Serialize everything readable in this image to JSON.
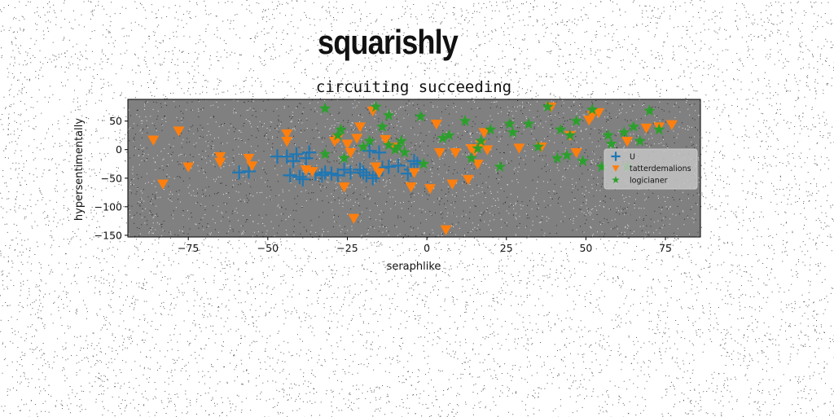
{
  "suptitle": "squarishly",
  "chart_data": {
    "type": "scatter",
    "title": "circuiting succeeding",
    "xlabel": "seraphlike",
    "ylabel": "hypersentimentally",
    "xlim": [
      -94,
      86
    ],
    "ylim": [
      -153,
      88
    ],
    "xticks": [
      -75,
      -50,
      -25,
      0,
      25,
      50,
      75
    ],
    "yticks": [
      -150,
      -100,
      -50,
      0,
      50
    ],
    "grid": false,
    "legend_position": "center-right",
    "background_color": "#808080",
    "series": [
      {
        "name": "U",
        "marker": "plus",
        "color": "#1f77b4",
        "points": [
          [
            -59,
            -40
          ],
          [
            -56,
            -38
          ],
          [
            -47,
            -12
          ],
          [
            -44,
            -12
          ],
          [
            -43,
            -45
          ],
          [
            -42,
            -20
          ],
          [
            -41,
            -8
          ],
          [
            -40,
            -48
          ],
          [
            -39,
            -52
          ],
          [
            -38,
            -15
          ],
          [
            -37,
            -5
          ],
          [
            -35,
            -42
          ],
          [
            -33,
            -45
          ],
          [
            -32,
            -40
          ],
          [
            -30,
            -42
          ],
          [
            -28,
            -45
          ],
          [
            -26,
            -35
          ],
          [
            -24,
            -40
          ],
          [
            -21,
            -35
          ],
          [
            -20,
            -40
          ],
          [
            -19,
            -45
          ],
          [
            -18,
            -2
          ],
          [
            -17,
            -50
          ],
          [
            -16,
            -45
          ],
          [
            -15,
            -5
          ],
          [
            -14,
            -32
          ],
          [
            -12,
            -30
          ],
          [
            -9,
            -28
          ],
          [
            -6,
            -42
          ],
          [
            -5,
            -35
          ],
          [
            -3,
            -25
          ],
          [
            -4,
            -20
          ]
        ]
      },
      {
        "name": "tatterdemalions",
        "marker": "triangle-down",
        "color": "#ff7f0e",
        "points": [
          [
            -86,
            17
          ],
          [
            -83,
            -60
          ],
          [
            -78,
            33
          ],
          [
            -75,
            -30
          ],
          [
            -65,
            -12
          ],
          [
            -65,
            -22
          ],
          [
            -56,
            -15
          ],
          [
            -55,
            -28
          ],
          [
            -44,
            28
          ],
          [
            -44,
            15
          ],
          [
            -38,
            -35
          ],
          [
            -36,
            -38
          ],
          [
            -29,
            15
          ],
          [
            -28,
            20
          ],
          [
            -26,
            -65
          ],
          [
            -25,
            10
          ],
          [
            -24,
            -5
          ],
          [
            -23,
            -120
          ],
          [
            -22,
            20
          ],
          [
            -21,
            40
          ],
          [
            -17,
            68
          ],
          [
            -16,
            -30
          ],
          [
            -15,
            -40
          ],
          [
            -13,
            18
          ],
          [
            -10,
            5
          ],
          [
            -5,
            -65
          ],
          [
            -4,
            -40
          ],
          [
            1,
            -68
          ],
          [
            3,
            45
          ],
          [
            4,
            -5
          ],
          [
            6,
            -140
          ],
          [
            8,
            -60
          ],
          [
            9,
            -5
          ],
          [
            13,
            -52
          ],
          [
            14,
            2
          ],
          [
            15,
            -2
          ],
          [
            16,
            -25
          ],
          [
            17,
            10
          ],
          [
            18,
            30
          ],
          [
            19,
            0
          ],
          [
            29,
            3
          ],
          [
            36,
            5
          ],
          [
            39,
            75
          ],
          [
            45,
            25
          ],
          [
            47,
            -5
          ],
          [
            51,
            52
          ],
          [
            52,
            60
          ],
          [
            54,
            65
          ],
          [
            63,
            15
          ],
          [
            69,
            38
          ],
          [
            73,
            40
          ],
          [
            77,
            44
          ]
        ]
      },
      {
        "name": "logicianer",
        "marker": "star",
        "color": "#2ca02c",
        "points": [
          [
            -32,
            72
          ],
          [
            -32,
            -8
          ],
          [
            -28,
            25
          ],
          [
            -27,
            35
          ],
          [
            -26,
            -15
          ],
          [
            -20,
            5
          ],
          [
            -18,
            15
          ],
          [
            -16,
            75
          ],
          [
            -14,
            40
          ],
          [
            -12,
            60
          ],
          [
            -12,
            8
          ],
          [
            -10,
            0
          ],
          [
            -9,
            5
          ],
          [
            -8,
            15
          ],
          [
            -7,
            -5
          ],
          [
            -2,
            58
          ],
          [
            -1,
            -25
          ],
          [
            5,
            20
          ],
          [
            7,
            25
          ],
          [
            12,
            50
          ],
          [
            14,
            -15
          ],
          [
            16,
            2
          ],
          [
            17,
            15
          ],
          [
            20,
            35
          ],
          [
            23,
            -30
          ],
          [
            26,
            45
          ],
          [
            27,
            30
          ],
          [
            32,
            45
          ],
          [
            35,
            5
          ],
          [
            38,
            75
          ],
          [
            41,
            -15
          ],
          [
            42,
            35
          ],
          [
            44,
            -10
          ],
          [
            45,
            25
          ],
          [
            47,
            50
          ],
          [
            49,
            -20
          ],
          [
            52,
            70
          ],
          [
            55,
            -30
          ],
          [
            57,
            25
          ],
          [
            58,
            10
          ],
          [
            62,
            30
          ],
          [
            63,
            -30
          ],
          [
            65,
            40
          ],
          [
            67,
            15
          ],
          [
            70,
            68
          ],
          [
            73,
            35
          ]
        ]
      }
    ]
  }
}
